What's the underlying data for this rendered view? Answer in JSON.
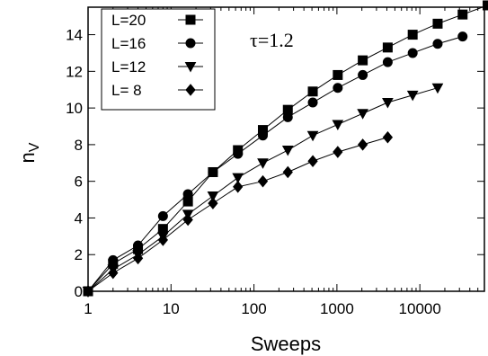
{
  "chart_data": {
    "type": "line",
    "xlabel": "Sweeps",
    "ylabel": "n",
    "ylabel_subscript": "V",
    "annotation": "τ=1.2",
    "x_scale": "log",
    "xlim": [
      1,
      60000
    ],
    "ylim": [
      0,
      15.5
    ],
    "x_ticks": [
      1,
      10,
      100,
      1000,
      10000
    ],
    "x_tick_labels": [
      "1",
      "10",
      "100",
      "1000",
      "10000"
    ],
    "y_ticks": [
      0,
      2,
      4,
      6,
      8,
      10,
      12,
      14
    ],
    "y_tick_labels": [
      "0",
      "2",
      "4",
      "6",
      "8",
      "10",
      "12",
      "14"
    ],
    "legend_position": "top-left",
    "series": [
      {
        "name": "L=20",
        "marker": "square",
        "x": [
          1,
          2,
          4,
          8,
          16,
          32,
          64,
          128,
          256,
          512,
          1024,
          2048,
          4096,
          8192,
          16384,
          32768,
          65536
        ],
        "y": [
          0,
          1.5,
          2.3,
          3.4,
          4.9,
          6.5,
          7.7,
          8.8,
          9.9,
          10.9,
          11.8,
          12.6,
          13.3,
          14.0,
          14.6,
          15.1,
          15.6
        ]
      },
      {
        "name": "L=16",
        "marker": "circle",
        "x": [
          1,
          2,
          4,
          8,
          16,
          32,
          64,
          128,
          256,
          512,
          1024,
          2048,
          4096,
          8192,
          16384,
          32768
        ],
        "y": [
          0,
          1.7,
          2.5,
          4.1,
          5.3,
          6.5,
          7.5,
          8.5,
          9.5,
          10.3,
          11.1,
          11.8,
          12.5,
          13.0,
          13.5,
          13.9
        ]
      },
      {
        "name": "L=12",
        "marker": "triangle-down",
        "x": [
          1,
          2,
          4,
          8,
          16,
          32,
          64,
          128,
          256,
          512,
          1024,
          2048,
          4096,
          8192,
          16384
        ],
        "y": [
          0,
          1.2,
          2.0,
          3.0,
          4.2,
          5.2,
          6.2,
          7.0,
          7.7,
          8.5,
          9.1,
          9.7,
          10.3,
          10.7,
          11.1
        ]
      },
      {
        "name": "L= 8",
        "marker": "diamond",
        "x": [
          1,
          2,
          4,
          8,
          16,
          32,
          64,
          128,
          256,
          512,
          1024,
          2048,
          4096
        ],
        "y": [
          0,
          1.0,
          1.8,
          2.8,
          3.9,
          4.8,
          5.7,
          6.0,
          6.5,
          7.1,
          7.6,
          8.0,
          8.4
        ]
      }
    ]
  }
}
